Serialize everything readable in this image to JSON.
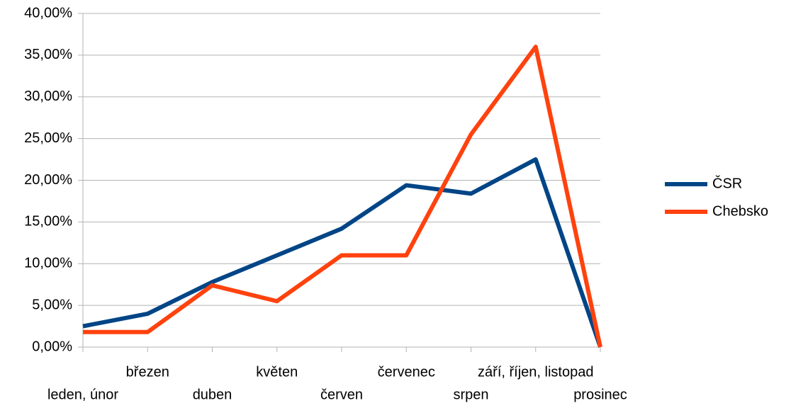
{
  "chart_data": {
    "type": "line",
    "categories": [
      "leden, únor",
      "březen",
      "duben",
      "květen",
      "červen",
      "červenec",
      "srpen",
      "září, říjen, listopad",
      "prosinec"
    ],
    "series": [
      {
        "name": "ČSR",
        "color": "#004586",
        "values": [
          2.5,
          4.0,
          7.8,
          11.0,
          14.2,
          19.4,
          18.4,
          22.5,
          0
        ]
      },
      {
        "name": "Chebsko",
        "color": "#ff420e",
        "values": [
          1.8,
          1.8,
          7.4,
          5.5,
          11.0,
          11.0,
          25.5,
          36.0,
          0
        ]
      }
    ],
    "ylim": [
      0,
      40
    ],
    "yticks": [
      {
        "value": 0,
        "label": "0,00%"
      },
      {
        "value": 5,
        "label": "5,00%"
      },
      {
        "value": 10,
        "label": "10,00%"
      },
      {
        "value": 15,
        "label": "15,00%"
      },
      {
        "value": 20,
        "label": "20,00%"
      },
      {
        "value": 25,
        "label": "25,00%"
      },
      {
        "value": 30,
        "label": "30,00%"
      },
      {
        "value": 35,
        "label": "35,00%"
      },
      {
        "value": 40,
        "label": "40,00%"
      }
    ],
    "grid": true,
    "legend": "right"
  }
}
